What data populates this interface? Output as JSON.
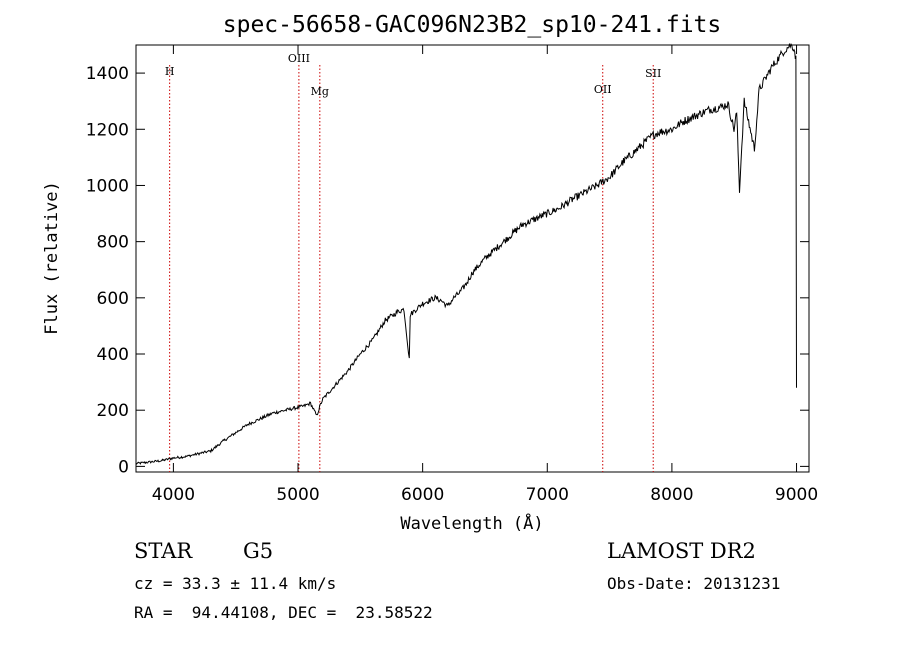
{
  "chart_data": {
    "type": "line",
    "title": "spec-56658-GAC096N23B2_sp10-241.fits",
    "xlabel": "Wavelength (Å)",
    "ylabel": "Flux (relative)",
    "xlim": [
      3700,
      9100
    ],
    "ylim": [
      -20,
      1500
    ],
    "x_ticks": [
      4000,
      5000,
      6000,
      7000,
      8000,
      9000
    ],
    "y_ticks": [
      0,
      200,
      400,
      600,
      800,
      1000,
      1200,
      1400
    ],
    "line_color": "#000000",
    "marker_color": "#cc0000",
    "series": [
      {
        "x": [
          3700,
          3800,
          3900,
          4000,
          4100,
          4200,
          4300,
          4400,
          4500,
          4600,
          4700,
          4800,
          4900,
          5000,
          5050,
          5100,
          5150,
          5180,
          5200,
          5300,
          5400,
          5500,
          5600,
          5700,
          5800,
          5850,
          5893,
          5900,
          5950,
          6000,
          6100,
          6150,
          6200,
          6250,
          6300,
          6350,
          6400,
          6500,
          6600,
          6700,
          6800,
          6900,
          7000,
          7100,
          7200,
          7300,
          7400,
          7500,
          7600,
          7700,
          7800,
          7850,
          7900,
          8000,
          8100,
          8200,
          8300,
          8400,
          8450,
          8498,
          8520,
          8542,
          8580,
          8662,
          8700,
          8750,
          8800,
          8850,
          8900,
          8950,
          8980,
          8995,
          9000
        ],
        "y": [
          10,
          15,
          20,
          30,
          35,
          45,
          55,
          90,
          120,
          150,
          170,
          190,
          200,
          210,
          215,
          225,
          180,
          220,
          240,
          290,
          340,
          400,
          450,
          520,
          550,
          560,
          380,
          540,
          560,
          580,
          600,
          590,
          570,
          600,
          620,
          650,
          690,
          740,
          780,
          820,
          860,
          880,
          900,
          920,
          950,
          975,
          1000,
          1030,
          1080,
          1120,
          1160,
          1180,
          1190,
          1200,
          1230,
          1250,
          1270,
          1280,
          1290,
          1200,
          1260,
          980,
          1300,
          1130,
          1340,
          1380,
          1420,
          1450,
          1480,
          1500,
          1490,
          1450,
          280
        ]
      }
    ],
    "markers": [
      {
        "label": "H",
        "x": 3970
      },
      {
        "label": "OIII",
        "x": 5007
      },
      {
        "label": "Mg",
        "x": 5175
      },
      {
        "label": "OII",
        "x": 7445
      },
      {
        "label": "SII",
        "x": 7850
      }
    ]
  },
  "info": {
    "class": "STAR",
    "subclass": "G5",
    "survey": "LAMOST DR2",
    "redshift": "cz = 33.3 ± 11.4 km/s",
    "obs_date": "Obs-Date: 20131231",
    "coords": "RA =  94.44108, DEC =  23.58522"
  }
}
